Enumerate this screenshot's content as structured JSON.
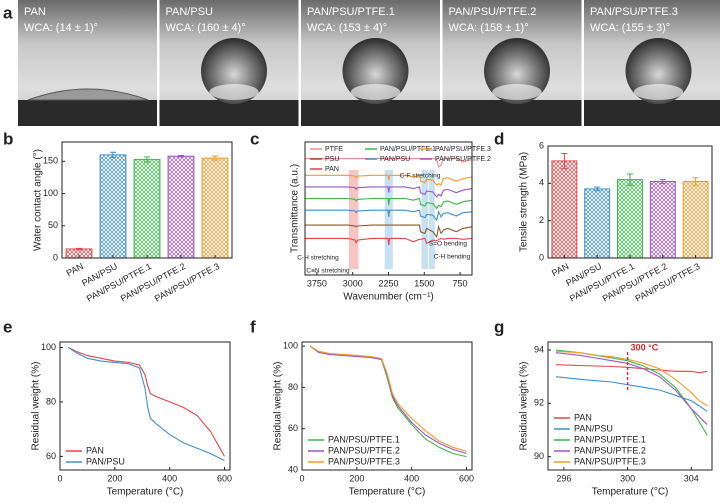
{
  "photos": {
    "panel_label": "a",
    "items": [
      {
        "label": "PAN",
        "wca": "WCA: (14 ± 1)°"
      },
      {
        "label": "PAN/PSU",
        "wca": "WCA: (160 ± 4)°"
      },
      {
        "label": "PAN/PSU/PTFE.1",
        "wca": "WCA: (153 ± 4)°"
      },
      {
        "label": "PAN/PSU/PTFE.2",
        "wca": "WCA: (158 ± 1)°"
      },
      {
        "label": "PAN/PSU/PTFE.3",
        "wca": "WCA: (155 ± 3)°"
      }
    ]
  },
  "chart_data": [
    {
      "type": "bar",
      "panel_label": "b",
      "ylabel": "Water contact angle (°)",
      "categories": [
        "PAN",
        "PAN/PSU",
        "PAN/PSU/PTFE.1",
        "PAN/PSU/PTFE.2",
        "PAN/PSU/PTFE.3"
      ],
      "values": [
        14,
        160,
        153,
        158,
        155
      ],
      "errors": [
        1,
        4,
        4,
        1,
        3
      ],
      "colors": [
        "#e0454a",
        "#3f8fd0",
        "#3cb64a",
        "#9a57c8",
        "#f39a2b"
      ],
      "ylim": [
        0,
        180
      ],
      "yticks": [
        0,
        50,
        100,
        150
      ]
    },
    {
      "type": "line",
      "panel_label": "c",
      "xlabel": "Wavenumber (cm⁻¹)",
      "ylabel": "Transmittance (a.u.)",
      "x": [
        4000,
        3500,
        3100,
        2950,
        2930,
        2900,
        2600,
        2260,
        2243,
        2230,
        1900,
        1730,
        1600,
        1580,
        1490,
        1450,
        1320,
        1240,
        1200,
        1150,
        1100,
        1010,
        830,
        690,
        500
      ],
      "series": [
        {
          "name": "PTFE",
          "color": "#f08a8a",
          "values": [
            7.0,
            7.0,
            7.0,
            7.0,
            7.0,
            7.0,
            7.0,
            7.0,
            7.0,
            7.0,
            7.0,
            7.0,
            7.0,
            7.0,
            7.0,
            7.0,
            7.0,
            6.95,
            6.5,
            6.6,
            7.0,
            7.0,
            7.0,
            6.8,
            6.95
          ]
        },
        {
          "name": "PAN/PSU/PTFE.1",
          "color": "#3cb64a",
          "values": [
            4.6,
            4.6,
            4.6,
            4.55,
            4.45,
            4.55,
            4.6,
            4.6,
            4.2,
            4.6,
            4.6,
            4.5,
            4.6,
            4.25,
            4.15,
            4.35,
            4.3,
            4.0,
            4.2,
            4.1,
            4.4,
            4.45,
            4.25,
            4.4,
            4.5
          ]
        },
        {
          "name": "PAN/PSU/PTFE.3",
          "color": "#f39a2b",
          "values": [
            6.0,
            6.0,
            6.0,
            5.95,
            5.85,
            5.95,
            6.0,
            6.0,
            5.7,
            6.0,
            6.0,
            5.9,
            6.0,
            5.65,
            5.55,
            5.75,
            5.7,
            5.4,
            5.5,
            5.4,
            5.8,
            5.85,
            5.65,
            5.8,
            5.9
          ]
        },
        {
          "name": "PSU",
          "color": "#8b5a2b",
          "values": [
            3.0,
            3.0,
            3.0,
            2.95,
            2.9,
            2.95,
            3.0,
            3.0,
            3.0,
            3.0,
            3.0,
            3.0,
            3.0,
            2.6,
            2.5,
            2.8,
            2.6,
            2.3,
            2.9,
            2.5,
            2.7,
            2.8,
            2.6,
            2.8,
            2.9
          ]
        },
        {
          "name": "PAN/PSU",
          "color": "#3f8fd0",
          "values": [
            3.9,
            3.9,
            3.9,
            3.85,
            3.75,
            3.85,
            3.9,
            3.9,
            3.5,
            3.9,
            3.9,
            3.8,
            3.9,
            3.55,
            3.45,
            3.65,
            3.6,
            3.3,
            3.8,
            3.5,
            3.7,
            3.75,
            3.55,
            3.75,
            3.8
          ]
        },
        {
          "name": "PAN/PSU/PTFE.2",
          "color": "#9a57c8",
          "values": [
            5.3,
            5.3,
            5.3,
            5.25,
            5.15,
            5.25,
            5.3,
            5.3,
            4.95,
            5.3,
            5.3,
            5.2,
            5.3,
            4.95,
            4.85,
            5.05,
            5.0,
            4.7,
            4.85,
            4.75,
            5.1,
            5.15,
            4.95,
            5.1,
            5.2
          ]
        },
        {
          "name": "PAN",
          "color": "#e0454a",
          "values": [
            2.2,
            2.2,
            2.2,
            2.1,
            1.95,
            2.1,
            2.2,
            2.2,
            1.8,
            2.2,
            2.2,
            2.0,
            2.15,
            2.15,
            2.2,
            1.9,
            2.1,
            2.05,
            2.15,
            2.2,
            2.15,
            2.2,
            2.2,
            2.15,
            2.2
          ]
        }
      ],
      "bands": [
        {
          "x": [
            2880,
            3080
          ],
          "color": "#f5b7b1"
        },
        {
          "x": [
            2160,
            2330
          ],
          "color": "#b9d8f0"
        },
        {
          "x": [
            1420,
            1560
          ],
          "color": "#b9d8f0"
        },
        {
          "x": [
            1280,
            1400
          ],
          "color": "#b9d8f0"
        }
      ],
      "annotations": [
        "C-F stretching",
        "S=O bending",
        "C-H bending",
        "C-H stretching",
        "C≡N stretching"
      ],
      "xlim": [
        4000,
        500
      ],
      "xticks": [
        3750,
        3000,
        2250,
        1500,
        750
      ],
      "ylim": [
        0,
        8
      ],
      "legend": "top"
    },
    {
      "type": "bar",
      "panel_label": "d",
      "ylabel": "Tensile strength (MPa)",
      "categories": [
        "PAN",
        "PAN/PSU",
        "PAN/PSU/PTFE.1",
        "PAN/PSU/PTFE.2",
        "PAN/PSU/PTFE.3"
      ],
      "values": [
        5.2,
        3.7,
        4.2,
        4.1,
        4.1
      ],
      "errors": [
        0.4,
        0.1,
        0.3,
        0.1,
        0.2
      ],
      "colors": [
        "#e0454a",
        "#3f8fd0",
        "#3cb64a",
        "#9a57c8",
        "#f39a2b"
      ],
      "ylim": [
        0,
        6
      ],
      "yticks": [
        0,
        2,
        4,
        6
      ]
    },
    {
      "type": "line",
      "panel_label": "e",
      "xlabel": "Temperature (°C)",
      "ylabel": "Residual weight (%)",
      "x": [
        30,
        60,
        100,
        150,
        200,
        250,
        290,
        310,
        320,
        330,
        350,
        400,
        450,
        500,
        550,
        600
      ],
      "series": [
        {
          "name": "PAN",
          "color": "#e0454a",
          "values": [
            100,
            98.5,
            97,
            96,
            95,
            94.5,
            93.5,
            90,
            86,
            83,
            82,
            80,
            78,
            75,
            69,
            60
          ]
        },
        {
          "name": "PAN/PSU",
          "color": "#3f8fd0",
          "values": [
            100,
            98,
            96,
            95,
            94.5,
            94,
            92.5,
            85,
            78,
            74,
            72,
            68,
            65,
            63,
            61,
            58.5
          ]
        }
      ],
      "xlim": [
        0,
        620
      ],
      "xticks": [
        0,
        200,
        400,
        600
      ],
      "ylim": [
        55,
        102
      ],
      "yticks": [
        60,
        80,
        100
      ],
      "legend": "lower left"
    },
    {
      "type": "line",
      "panel_label": "f",
      "xlabel": "Temperature (°C)",
      "ylabel": "Residual weight (%)",
      "x": [
        30,
        60,
        100,
        200,
        250,
        290,
        310,
        330,
        350,
        400,
        450,
        500,
        550,
        600
      ],
      "series": [
        {
          "name": "PAN/PSU/PTFE.1",
          "color": "#3cb64a",
          "values": [
            100,
            97,
            96,
            95,
            94.5,
            93.5,
            85,
            75,
            70,
            62,
            55,
            51,
            48,
            46.5
          ]
        },
        {
          "name": "PAN/PSU/PTFE.2",
          "color": "#9a57c8",
          "values": [
            100,
            97,
            96,
            95,
            94.5,
            93.5,
            86,
            76,
            71,
            63,
            57,
            53,
            50,
            48
          ]
        },
        {
          "name": "PAN/PSU/PTFE.3",
          "color": "#f39a2b",
          "values": [
            100,
            97.5,
            96.5,
            95.5,
            95,
            94,
            87,
            77,
            72,
            65,
            59,
            54,
            51,
            49
          ]
        }
      ],
      "xlim": [
        0,
        620
      ],
      "xticks": [
        0,
        200,
        400,
        600
      ],
      "ylim": [
        40,
        102
      ],
      "yticks": [
        40,
        60,
        80,
        100
      ],
      "legend": "lower left"
    },
    {
      "type": "line",
      "panel_label": "g",
      "xlabel": "Temperature (°C)",
      "ylabel": "Residual weight (%)",
      "x": [
        295.5,
        297,
        298,
        299,
        300,
        301,
        302,
        303,
        304,
        304.5,
        305
      ],
      "series": [
        {
          "name": "PAN",
          "color": "#e0454a",
          "values": [
            93.45,
            93.42,
            93.4,
            93.38,
            93.35,
            93.3,
            93.25,
            93.2,
            93.2,
            93.15,
            93.2
          ]
        },
        {
          "name": "PAN/PSU",
          "color": "#3f8fd0",
          "values": [
            93.0,
            92.9,
            92.85,
            92.8,
            92.7,
            92.6,
            92.5,
            92.3,
            92.1,
            91.9,
            91.7
          ]
        },
        {
          "name": "PAN/PSU/PTFE.1",
          "color": "#3cb64a",
          "values": [
            94.0,
            93.9,
            93.8,
            93.7,
            93.6,
            93.4,
            93.1,
            92.6,
            91.8,
            91.3,
            90.8
          ]
        },
        {
          "name": "PAN/PSU/PTFE.2",
          "color": "#9a57c8",
          "values": [
            93.9,
            93.8,
            93.7,
            93.6,
            93.5,
            93.3,
            93.0,
            92.5,
            91.8,
            91.5,
            91.2
          ]
        },
        {
          "name": "PAN/PSU/PTFE.3",
          "color": "#f39a2b",
          "values": [
            93.95,
            93.9,
            93.8,
            93.75,
            93.65,
            93.5,
            93.3,
            92.9,
            92.4,
            92.1,
            91.9
          ]
        }
      ],
      "marker_line": {
        "x": 300,
        "y": [
          92.5,
          94.0
        ],
        "label": "300 °C",
        "color": "#d62728"
      },
      "xlim": [
        295,
        305.3
      ],
      "xticks": [
        296,
        300,
        304
      ],
      "ylim": [
        89.5,
        94.3
      ],
      "yticks": [
        90,
        92,
        94
      ],
      "legend": "lower left"
    }
  ]
}
